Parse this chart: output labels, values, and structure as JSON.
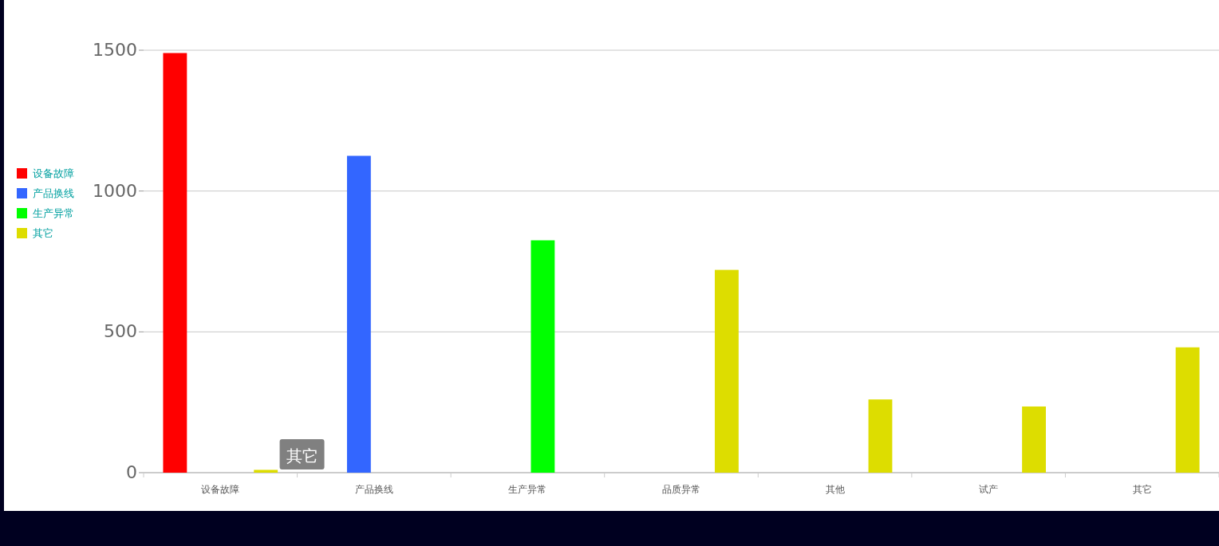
{
  "chart_data": {
    "type": "bar",
    "categories": [
      "设备故障",
      "产品换线",
      "生产异常",
      "品质异常",
      "其他",
      "试产",
      "其它"
    ],
    "series": [
      {
        "name": "设备故障",
        "color": "#ff0000",
        "values": [
          1490,
          null,
          null,
          null,
          null,
          null,
          null
        ]
      },
      {
        "name": "产品换线",
        "color": "#3366ff",
        "values": [
          null,
          1125,
          null,
          null,
          null,
          null,
          null
        ]
      },
      {
        "name": "生产异常",
        "color": "#00ff00",
        "values": [
          null,
          null,
          825,
          null,
          null,
          null,
          null
        ]
      },
      {
        "name": "其它",
        "color": "#dddd00",
        "values": [
          10,
          null,
          null,
          720,
          260,
          235,
          445
        ]
      }
    ],
    "ylim": [
      0,
      1500
    ],
    "yticks": [
      0,
      500,
      1000,
      1500
    ],
    "grid": "y",
    "legend": "left",
    "annotations": [
      "其它"
    ]
  }
}
